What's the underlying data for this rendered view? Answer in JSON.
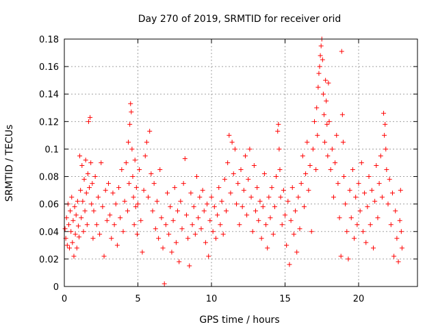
{
  "chart_data": {
    "type": "scatter",
    "title": "Day 270 of 2019, SRMTID for receiver orid",
    "xlabel": "GPS time / hours",
    "ylabel": "SRMTID / TECUs",
    "xlim": [
      0,
      24
    ],
    "ylim": [
      0,
      0.18
    ],
    "x_ticks": [
      0,
      5,
      10,
      15,
      20
    ],
    "x_tick_labels": [
      "0",
      "5",
      "10",
      "15",
      "20"
    ],
    "y_ticks": [
      0,
      0.02,
      0.04,
      0.06,
      0.08,
      0.1,
      0.12,
      0.14,
      0.16,
      0.18
    ],
    "y_tick_labels": [
      "0",
      "0.02",
      "0.04",
      "0.06",
      "0.08",
      "0.1",
      "0.12",
      "0.14",
      "0.16",
      "0.18"
    ],
    "grid": true,
    "marker": "+",
    "marker_color": "#ff0000",
    "series": [
      {
        "name": "SRMTID",
        "points": [
          [
            0.05,
            0.042
          ],
          [
            0.1,
            0.035
          ],
          [
            0.15,
            0.05
          ],
          [
            0.2,
            0.03
          ],
          [
            0.25,
            0.06
          ],
          [
            0.3,
            0.045
          ],
          [
            0.35,
            0.028
          ],
          [
            0.4,
            0.055
          ],
          [
            0.45,
            0.04
          ],
          [
            0.5,
            0.065
          ],
          [
            0.55,
            0.032
          ],
          [
            0.6,
            0.048
          ],
          [
            0.65,
            0.022
          ],
          [
            0.7,
            0.058
          ],
          [
            0.75,
            0.038
          ],
          [
            0.8,
            0.052
          ],
          [
            0.85,
            0.028
          ],
          [
            0.9,
            0.062
          ],
          [
            0.95,
            0.044
          ],
          [
            1.0,
            0.036
          ],
          [
            1.05,
            0.095
          ],
          [
            1.1,
            0.07
          ],
          [
            1.15,
            0.05
          ],
          [
            1.2,
            0.088
          ],
          [
            1.25,
            0.062
          ],
          [
            1.3,
            0.04
          ],
          [
            1.35,
            0.078
          ],
          [
            1.4,
            0.055
          ],
          [
            1.45,
            0.092
          ],
          [
            1.5,
            0.068
          ],
          [
            1.55,
            0.045
          ],
          [
            1.6,
            0.082
          ],
          [
            1.65,
            0.12
          ],
          [
            1.7,
            0.072
          ],
          [
            1.75,
            0.123
          ],
          [
            1.8,
            0.09
          ],
          [
            1.85,
            0.06
          ],
          [
            1.9,
            0.075
          ],
          [
            1.95,
            0.035
          ],
          [
            2.0,
            0.055
          ],
          [
            2.1,
            0.08
          ],
          [
            2.2,
            0.045
          ],
          [
            2.3,
            0.065
          ],
          [
            2.4,
            0.038
          ],
          [
            2.5,
            0.09
          ],
          [
            2.6,
            0.058
          ],
          [
            2.7,
            0.022
          ],
          [
            2.8,
            0.07
          ],
          [
            2.9,
            0.048
          ],
          [
            3.0,
            0.075
          ],
          [
            3.1,
            0.052
          ],
          [
            3.2,
            0.035
          ],
          [
            3.3,
            0.068
          ],
          [
            3.4,
            0.045
          ],
          [
            3.5,
            0.06
          ],
          [
            3.6,
            0.03
          ],
          [
            3.7,
            0.072
          ],
          [
            3.8,
            0.05
          ],
          [
            3.9,
            0.085
          ],
          [
            4.0,
            0.04
          ],
          [
            4.1,
            0.062
          ],
          [
            4.2,
            0.09
          ],
          [
            4.3,
            0.055
          ],
          [
            4.35,
            0.105
          ],
          [
            4.4,
            0.075
          ],
          [
            4.45,
            0.118
          ],
          [
            4.5,
            0.133
          ],
          [
            4.55,
            0.127
          ],
          [
            4.6,
            0.1
          ],
          [
            4.65,
            0.08
          ],
          [
            4.7,
            0.065
          ],
          [
            4.75,
            0.045
          ],
          [
            4.8,
            0.092
          ],
          [
            4.85,
            0.058
          ],
          [
            4.9,
            0.072
          ],
          [
            4.95,
            0.038
          ],
          [
            5.0,
            0.06
          ],
          [
            5.1,
            0.085
          ],
          [
            5.2,
            0.048
          ],
          [
            5.3,
            0.025
          ],
          [
            5.4,
            0.07
          ],
          [
            5.5,
            0.095
          ],
          [
            5.6,
            0.105
          ],
          [
            5.7,
            0.065
          ],
          [
            5.8,
            0.113
          ],
          [
            5.9,
            0.082
          ],
          [
            6.0,
            0.055
          ],
          [
            6.1,
            0.075
          ],
          [
            6.2,
            0.042
          ],
          [
            6.3,
            0.062
          ],
          [
            6.4,
            0.035
          ],
          [
            6.5,
            0.085
          ],
          [
            6.6,
            0.05
          ],
          [
            6.7,
            0.028
          ],
          [
            6.8,
            0.002
          ],
          [
            6.9,
            0.045
          ],
          [
            7.0,
            0.068
          ],
          [
            7.1,
            0.038
          ],
          [
            7.2,
            0.058
          ],
          [
            7.3,
            0.025
          ],
          [
            7.4,
            0.048
          ],
          [
            7.5,
            0.072
          ],
          [
            7.6,
            0.032
          ],
          [
            7.7,
            0.055
          ],
          [
            7.8,
            0.018
          ],
          [
            7.9,
            0.062
          ],
          [
            8.0,
            0.042
          ],
          [
            8.1,
            0.075
          ],
          [
            8.2,
            0.093
          ],
          [
            8.3,
            0.052
          ],
          [
            8.4,
            0.035
          ],
          [
            8.5,
            0.015
          ],
          [
            8.6,
            0.068
          ],
          [
            8.7,
            0.045
          ],
          [
            8.8,
            0.058
          ],
          [
            8.9,
            0.038
          ],
          [
            9.0,
            0.08
          ],
          [
            9.1,
            0.05
          ],
          [
            9.2,
            0.065
          ],
          [
            9.3,
            0.042
          ],
          [
            9.4,
            0.07
          ],
          [
            9.5,
            0.055
          ],
          [
            9.6,
            0.032
          ],
          [
            9.7,
            0.06
          ],
          [
            9.8,
            0.022
          ],
          [
            9.9,
            0.048
          ],
          [
            10.0,
            0.065
          ],
          [
            10.1,
            0.04
          ],
          [
            10.2,
            0.058
          ],
          [
            10.3,
            0.035
          ],
          [
            10.4,
            0.052
          ],
          [
            10.5,
            0.072
          ],
          [
            10.6,
            0.045
          ],
          [
            10.7,
            0.062
          ],
          [
            10.8,
            0.038
          ],
          [
            10.9,
            0.078
          ],
          [
            11.0,
            0.055
          ],
          [
            11.1,
            0.09
          ],
          [
            11.2,
            0.11
          ],
          [
            11.3,
            0.068
          ],
          [
            11.4,
            0.105
          ],
          [
            11.5,
            0.082
          ],
          [
            11.6,
            0.1
          ],
          [
            11.7,
            0.06
          ],
          [
            11.8,
            0.075
          ],
          [
            11.9,
            0.045
          ],
          [
            12.0,
            0.085
          ],
          [
            12.1,
            0.058
          ],
          [
            12.2,
            0.07
          ],
          [
            12.3,
            0.095
          ],
          [
            12.4,
            0.052
          ],
          [
            12.5,
            0.078
          ],
          [
            12.6,
            0.1
          ],
          [
            12.7,
            0.065
          ],
          [
            12.8,
            0.04
          ],
          [
            12.9,
            0.088
          ],
          [
            13.0,
            0.055
          ],
          [
            13.1,
            0.072
          ],
          [
            13.2,
            0.048
          ],
          [
            13.3,
            0.062
          ],
          [
            13.4,
            0.035
          ],
          [
            13.5,
            0.058
          ],
          [
            13.6,
            0.082
          ],
          [
            13.7,
            0.045
          ],
          [
            13.8,
            0.028
          ],
          [
            13.9,
            0.065
          ],
          [
            14.0,
            0.05
          ],
          [
            14.1,
            0.072
          ],
          [
            14.2,
            0.038
          ],
          [
            14.3,
            0.058
          ],
          [
            14.4,
            0.08
          ],
          [
            14.5,
            0.113
          ],
          [
            14.55,
            0.118
          ],
          [
            14.6,
            0.1
          ],
          [
            14.65,
            0.085
          ],
          [
            14.7,
            0.065
          ],
          [
            14.8,
            0.045
          ],
          [
            14.9,
            0.07
          ],
          [
            15.0,
            0.052
          ],
          [
            15.1,
            0.03
          ],
          [
            15.2,
            0.062
          ],
          [
            15.3,
            0.016
          ],
          [
            15.4,
            0.048
          ],
          [
            15.5,
            0.072
          ],
          [
            15.6,
            0.038
          ],
          [
            15.7,
            0.055
          ],
          [
            15.8,
            0.025
          ],
          [
            15.9,
            0.065
          ],
          [
            16.0,
            0.042
          ],
          [
            16.1,
            0.075
          ],
          [
            16.2,
            0.095
          ],
          [
            16.3,
            0.058
          ],
          [
            16.4,
            0.082
          ],
          [
            16.5,
            0.105
          ],
          [
            16.6,
            0.07
          ],
          [
            16.7,
            0.088
          ],
          [
            16.8,
            0.04
          ],
          [
            16.9,
            0.1
          ],
          [
            17.0,
            0.12
          ],
          [
            17.1,
            0.085
          ],
          [
            17.15,
            0.13
          ],
          [
            17.2,
            0.11
          ],
          [
            17.25,
            0.145
          ],
          [
            17.3,
            0.155
          ],
          [
            17.35,
            0.16
          ],
          [
            17.4,
            0.168
          ],
          [
            17.45,
            0.175
          ],
          [
            17.5,
            0.18
          ],
          [
            17.55,
            0.165
          ],
          [
            17.6,
            0.14
          ],
          [
            17.65,
            0.125
          ],
          [
            17.7,
            0.105
          ],
          [
            17.75,
            0.15
          ],
          [
            17.8,
            0.135
          ],
          [
            17.85,
            0.118
          ],
          [
            17.9,
            0.095
          ],
          [
            17.95,
            0.148
          ],
          [
            18.0,
            0.12
          ],
          [
            18.1,
            0.085
          ],
          [
            18.2,
            0.1
          ],
          [
            18.3,
            0.065
          ],
          [
            18.4,
            0.09
          ],
          [
            18.5,
            0.11
          ],
          [
            18.6,
            0.075
          ],
          [
            18.7,
            0.05
          ],
          [
            18.8,
            0.022
          ],
          [
            18.85,
            0.171
          ],
          [
            18.9,
            0.125
          ],
          [
            18.95,
            0.105
          ],
          [
            19.0,
            0.08
          ],
          [
            19.1,
            0.06
          ],
          [
            19.2,
            0.04
          ],
          [
            19.3,
            0.02
          ],
          [
            19.4,
            0.07
          ],
          [
            19.5,
            0.05
          ],
          [
            19.6,
            0.085
          ],
          [
            19.7,
            0.035
          ],
          [
            19.8,
            0.065
          ],
          [
            19.9,
            0.045
          ],
          [
            20.0,
            0.075
          ],
          [
            20.1,
            0.055
          ],
          [
            20.2,
            0.09
          ],
          [
            20.3,
            0.04
          ],
          [
            20.4,
            0.068
          ],
          [
            20.5,
            0.032
          ],
          [
            20.6,
            0.058
          ],
          [
            20.7,
            0.08
          ],
          [
            20.8,
            0.045
          ],
          [
            20.9,
            0.07
          ],
          [
            21.0,
            0.028
          ],
          [
            21.1,
            0.062
          ],
          [
            21.2,
            0.088
          ],
          [
            21.3,
            0.05
          ],
          [
            21.4,
            0.075
          ],
          [
            21.5,
            0.095
          ],
          [
            21.6,
            0.065
          ],
          [
            21.7,
            0.126
          ],
          [
            21.75,
            0.11
          ],
          [
            21.8,
            0.118
          ],
          [
            21.85,
            0.1
          ],
          [
            21.9,
            0.085
          ],
          [
            22.0,
            0.06
          ],
          [
            22.1,
            0.078
          ],
          [
            22.2,
            0.045
          ],
          [
            22.3,
            0.068
          ],
          [
            22.4,
            0.022
          ],
          [
            22.5,
            0.055
          ],
          [
            22.6,
            0.035
          ],
          [
            22.7,
            0.018
          ],
          [
            22.8,
            0.048
          ],
          [
            22.85,
            0.07
          ],
          [
            22.9,
            0.04
          ],
          [
            22.95,
            0.028
          ]
        ]
      }
    ]
  }
}
